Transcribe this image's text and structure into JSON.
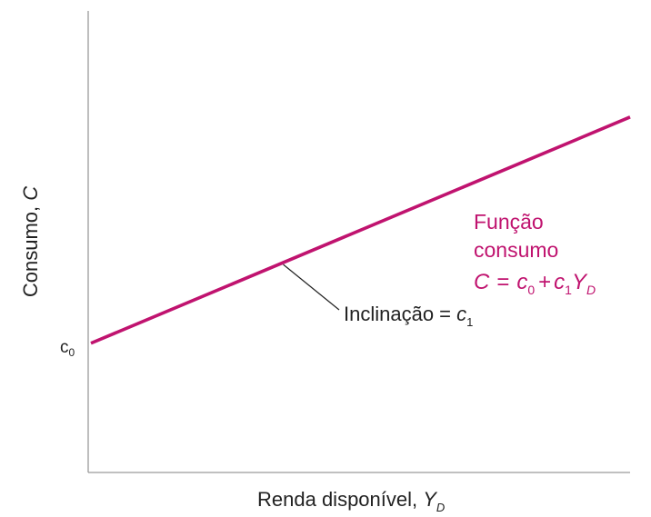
{
  "chart_data": {
    "type": "line",
    "title": "",
    "xlabel": {
      "text": "Renda disponível, ",
      "var": "Y",
      "sub": "D"
    },
    "ylabel": {
      "text": "Consumo, ",
      "var": "C"
    },
    "y_intercept_label": {
      "base": "c",
      "sub": "0"
    },
    "line_color": "#c0136f",
    "series": [
      {
        "name": "Função consumo",
        "intercept": 0.28,
        "slope": 0.49
      }
    ],
    "xlim": [
      0,
      1
    ],
    "ylim": [
      0,
      1
    ],
    "grid": false,
    "annotations": {
      "curve_label": {
        "line1": "Função",
        "line2": "consumo",
        "equation": {
          "lhs": "C",
          "eq": "=",
          "c0": "c",
          "c0_sub": "0",
          "plus": "+",
          "c1": "c",
          "c1_sub": "1",
          "yd": "Y",
          "yd_sub": "D"
        }
      },
      "slope_label": {
        "text": "Inclinação = ",
        "var": "c",
        "sub": "1",
        "points_to_x": 0.36
      }
    }
  }
}
